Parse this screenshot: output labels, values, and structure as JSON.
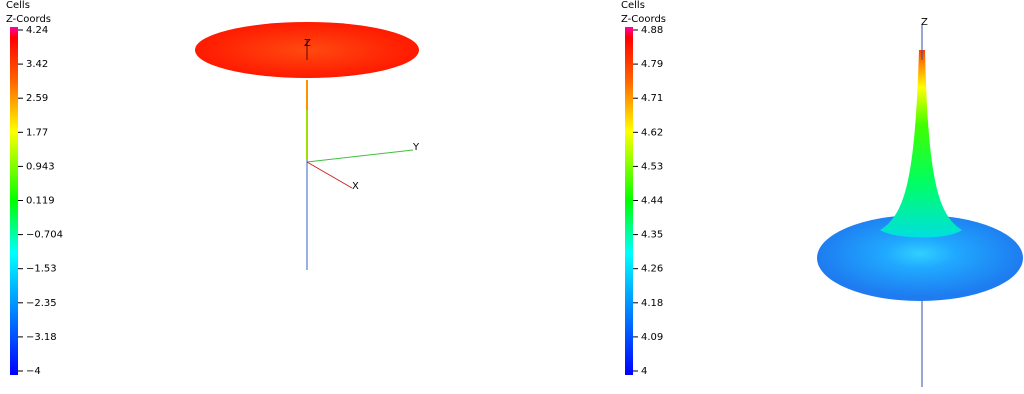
{
  "panels": [
    {
      "title": "Cells",
      "subtitle": "Z-Coords",
      "ticks": [
        "4.24",
        "3.42",
        "2.59",
        "1.77",
        "0.943",
        "0.119",
        "−0.704",
        "−1.53",
        "−2.35",
        "−3.18",
        "−4"
      ],
      "axes": [
        "Z",
        "Y",
        "X"
      ]
    },
    {
      "title": "Cells",
      "subtitle": "Z-Coords",
      "ticks": [
        "4.88",
        "4.79",
        "4.71",
        "4.62",
        "4.53",
        "4.44",
        "4.35",
        "4.26",
        "4.18",
        "4.09",
        "4"
      ],
      "axes": [
        "Z"
      ]
    }
  ]
}
